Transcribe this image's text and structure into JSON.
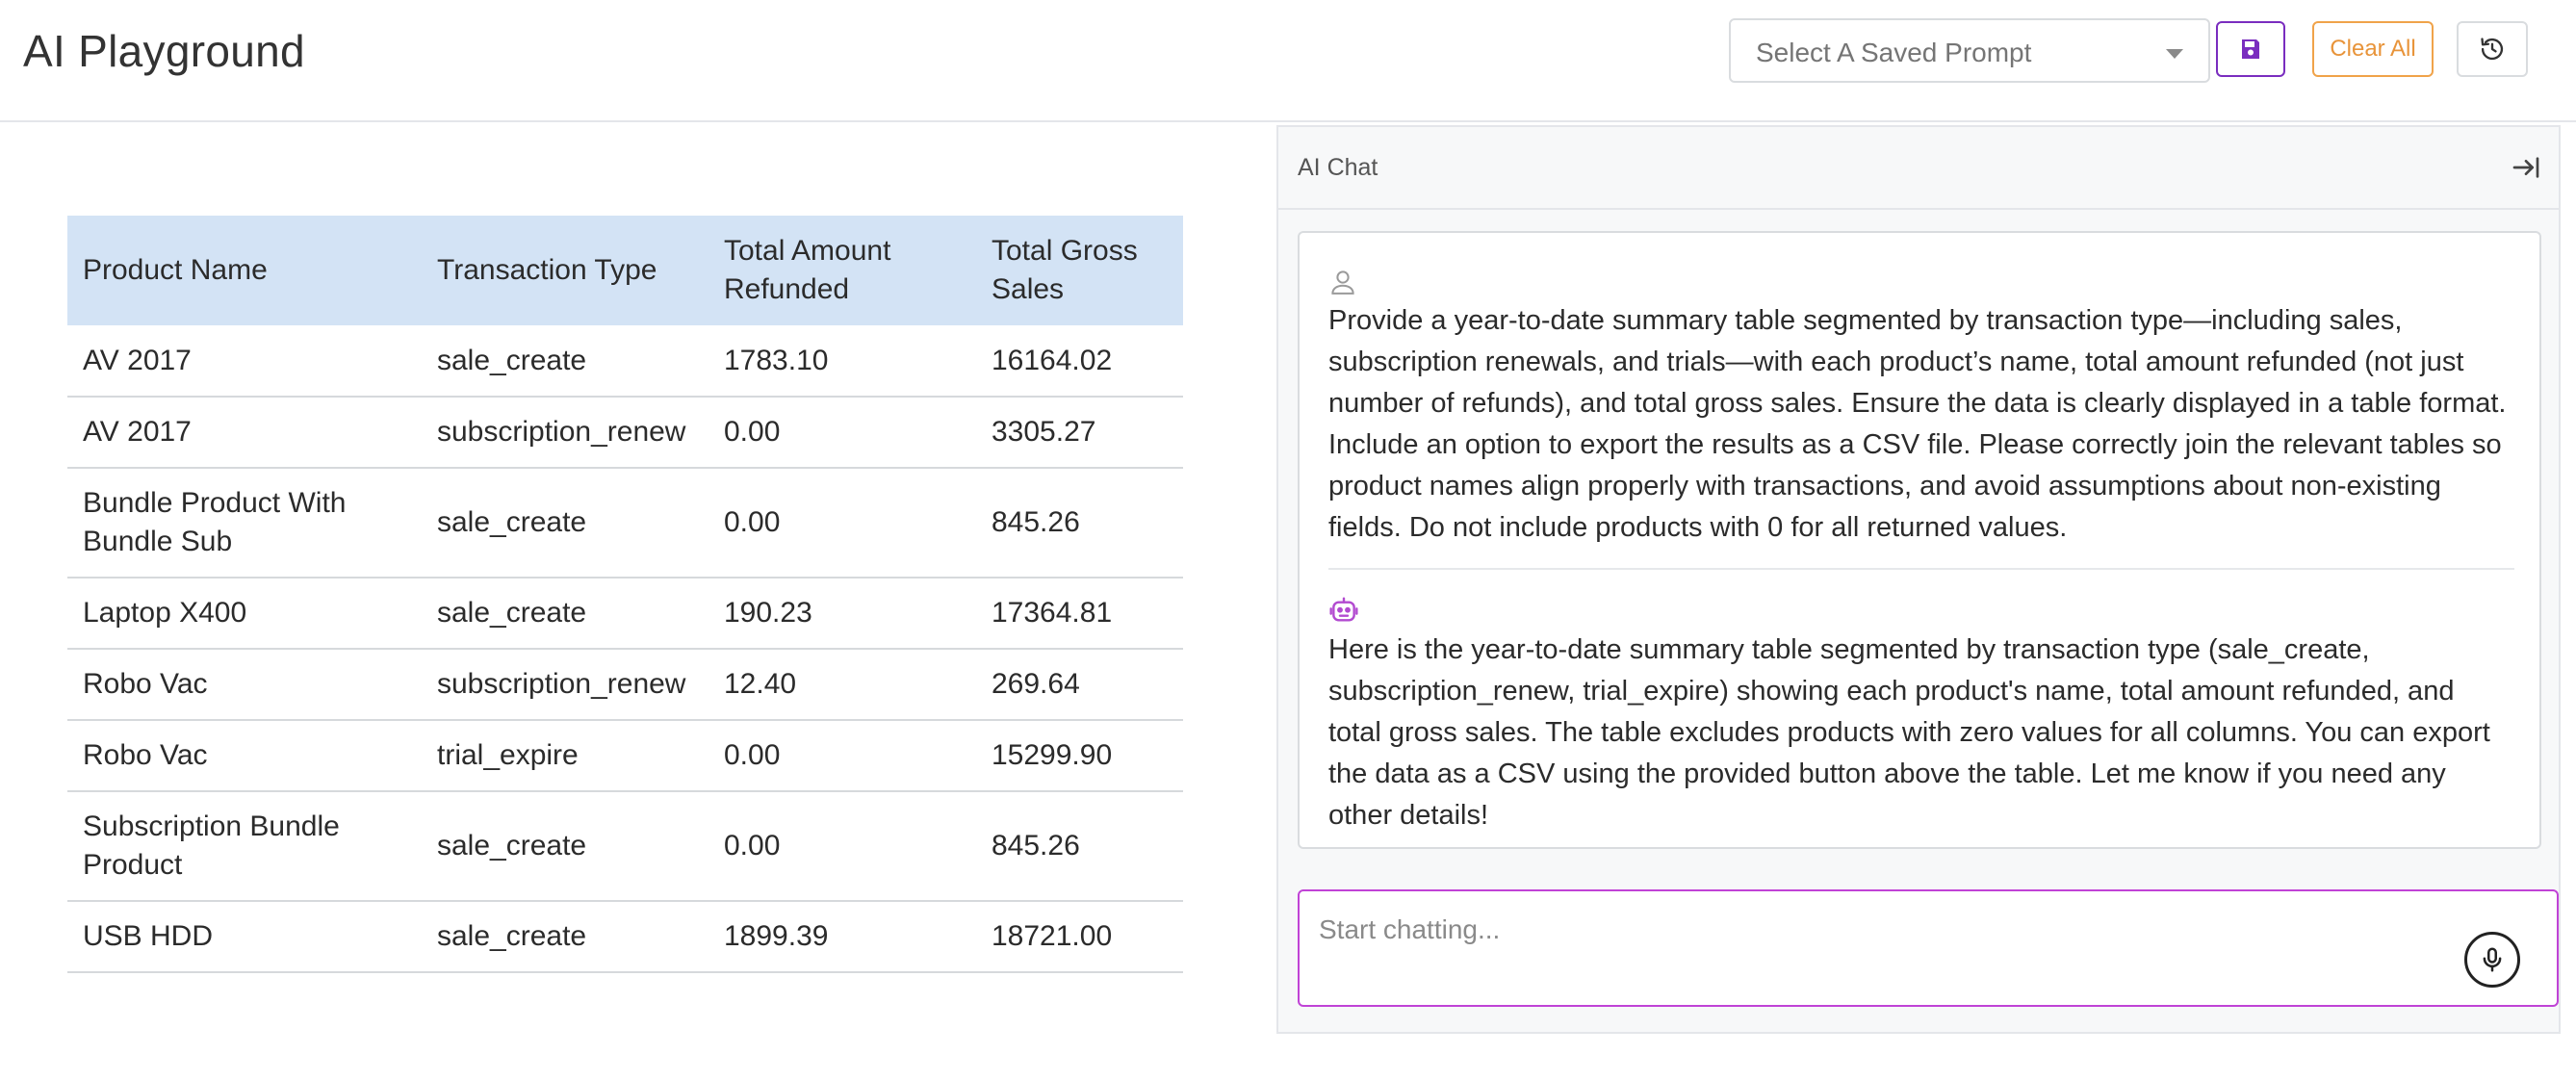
{
  "header": {
    "title": "AI Playground",
    "prompt_select_placeholder": "Select A Saved Prompt",
    "clear_label": "Clear All",
    "border_color_save": "#7a2dbf",
    "border_color_clear": "#f0a34a"
  },
  "table": {
    "columns": [
      "Product Name",
      "Transaction Type",
      "Total Amount Refunded",
      "Total Gross Sales"
    ],
    "header_bg": "#d3e3f5",
    "rows": [
      [
        "AV 2017",
        "sale_create",
        "1783.10",
        "16164.02"
      ],
      [
        "AV 2017",
        "subscription_renew",
        "0.00",
        "3305.27"
      ],
      [
        "Bundle Product With Bundle Sub",
        "sale_create",
        "0.00",
        "845.26"
      ],
      [
        "Laptop X400",
        "sale_create",
        "190.23",
        "17364.81"
      ],
      [
        "Robo Vac",
        "subscription_renew",
        "12.40",
        "269.64"
      ],
      [
        "Robo Vac",
        "trial_expire",
        "0.00",
        "15299.90"
      ],
      [
        "Subscription Bundle Product",
        "sale_create",
        "0.00",
        "845.26"
      ],
      [
        "USB HDD",
        "sale_create",
        "1899.39",
        "18721.00"
      ]
    ]
  },
  "chat": {
    "title": "AI Chat",
    "user_message": "Provide a year-to-date summary table segmented by transaction type—including sales, subscription renewals, and trials—with each product’s name, total amount refunded (not just number of refunds), and total gross sales. Ensure the data is clearly displayed in a table format. Include an option to export the results as a CSV file. Please correctly join the relevant tables so product names align properly with transactions, and avoid assumptions about non-existing fields. Do not include products with 0 for all returned values.",
    "ai_message": "Here is the year-to-date summary table segmented by transaction type (sale_create, subscription_renew, trial_expire) showing each product's name, total amount refunded, and total gross sales. The table excludes products with zero values for all columns. You can export the data as a CSV using the provided button above the table. Let me know if you need any other details!",
    "input_placeholder": "Start chatting...",
    "accent_color": "#c043d6",
    "icons": {
      "user": "user-outline-icon",
      "ai": "robot-icon",
      "collapse": "collapse-right-icon",
      "mic": "microphone-icon",
      "save": "floppy-disk-icon",
      "history": "history-icon"
    }
  }
}
